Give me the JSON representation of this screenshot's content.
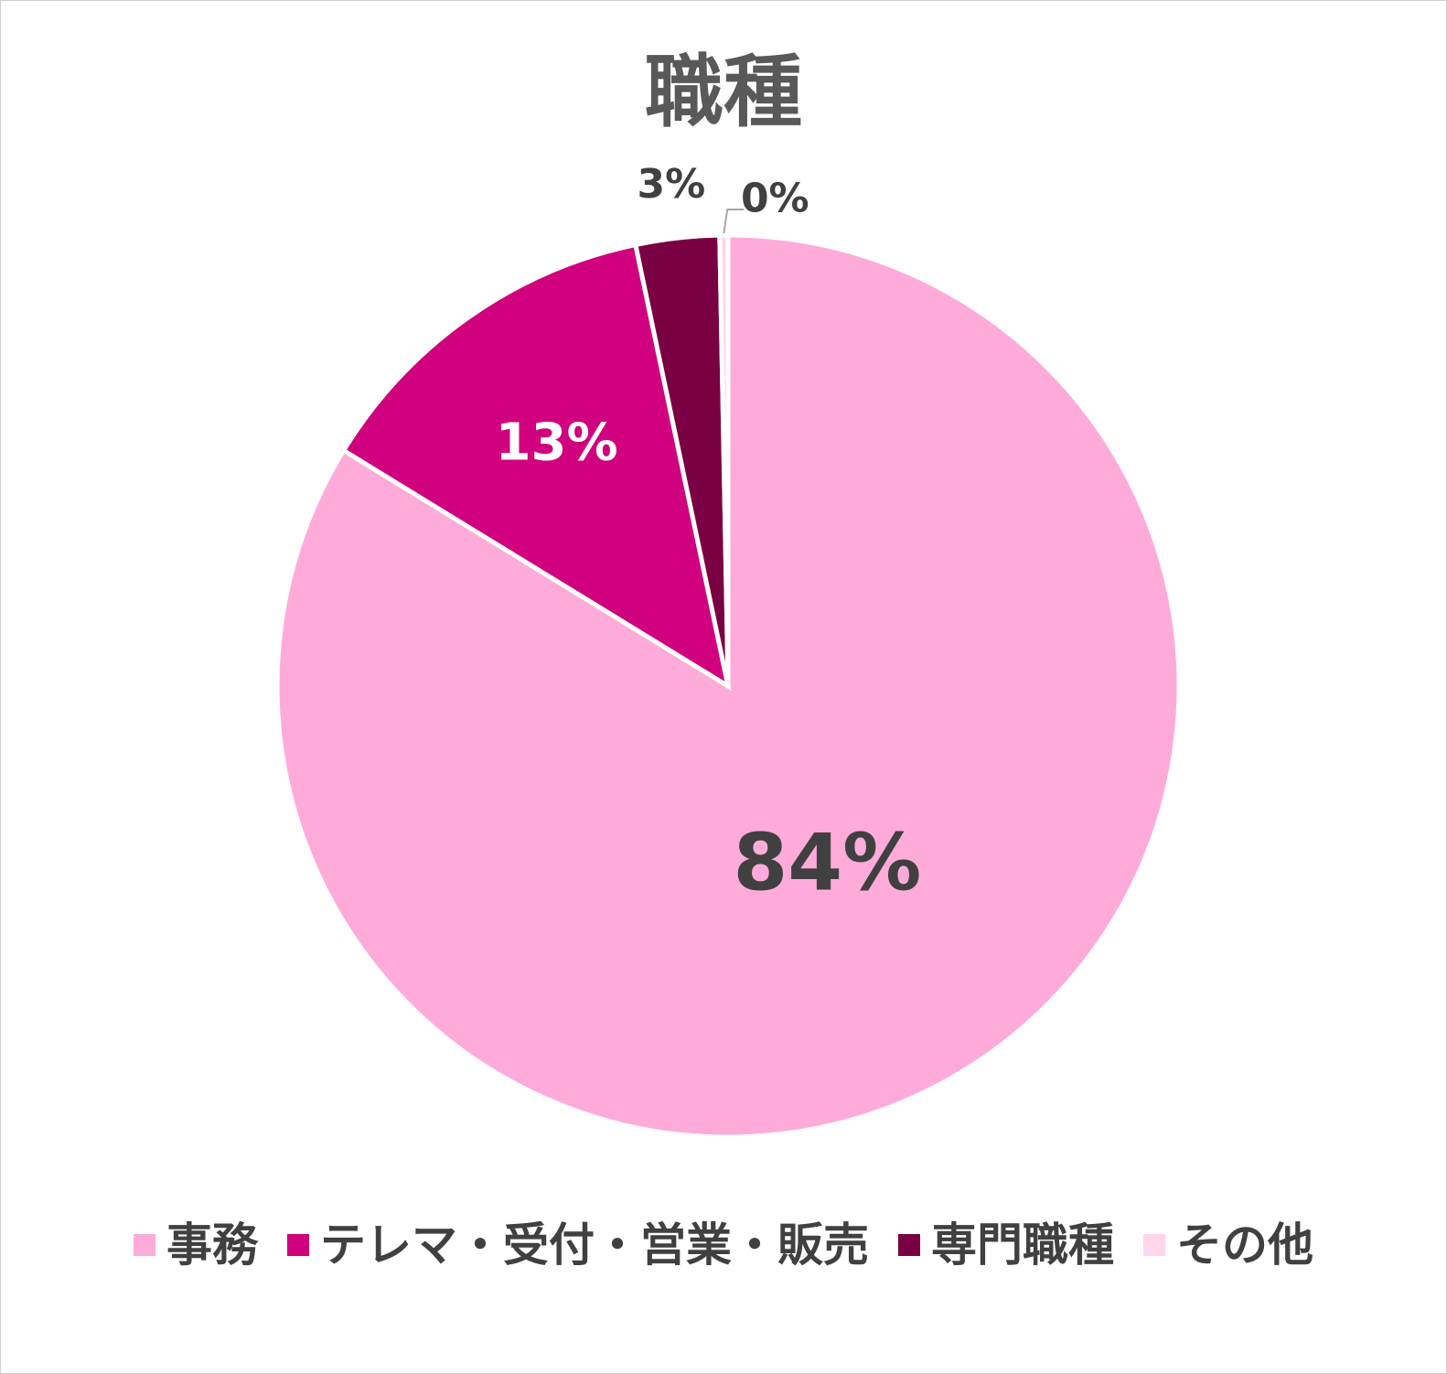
{
  "chart_data": {
    "type": "pie",
    "title": "職種",
    "categories": [
      "事務",
      "テレマ・受付・営業・販売",
      "専門職種",
      "その他"
    ],
    "values": [
      84,
      13,
      3,
      0
    ],
    "data_labels": [
      "84%",
      "13%",
      "3%",
      "0%"
    ],
    "colors": [
      "#FFABDA",
      "#D0007E",
      "#7A0044",
      "#FFD6EC"
    ],
    "label_colors": [
      "#404040",
      "#FFFFFF",
      "#404040",
      "#404040"
    ],
    "legend_position": "bottom",
    "start_angle": "top",
    "direction": "clockwise"
  }
}
